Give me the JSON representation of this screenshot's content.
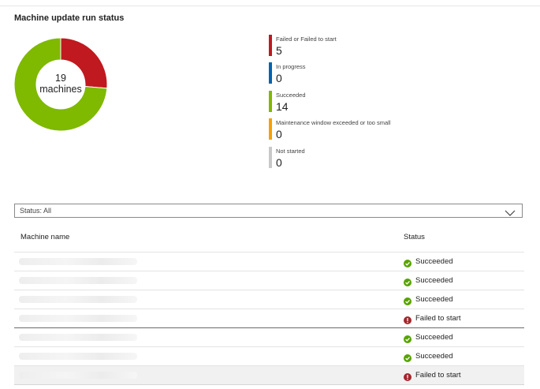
{
  "panel": {
    "title": "Machine update run status"
  },
  "donut": {
    "total_count": "19",
    "total_label": "machines",
    "segments": [
      {
        "name": "Failed or Failed to start",
        "value": 5,
        "color": "#c0191f"
      },
      {
        "name": "Succeeded",
        "value": 14,
        "color": "#7fb900"
      }
    ]
  },
  "legend": {
    "items": [
      {
        "label": "Failed or Failed to start",
        "value": "5",
        "color": "#c0191f"
      },
      {
        "label": "In progress",
        "value": "0",
        "color": "#0063b1"
      },
      {
        "label": "Succeeded",
        "value": "14",
        "color": "#7fb900"
      },
      {
        "label": "Maintenance window exceeded or too small",
        "value": "0",
        "color": "#f7a000"
      },
      {
        "label": "Not started",
        "value": "0",
        "color": "#c8c8c8"
      }
    ]
  },
  "filter": {
    "label": "Status: All",
    "icon": "chevron-down-icon"
  },
  "table": {
    "columns": [
      "Machine name",
      "Status"
    ],
    "rows": [
      {
        "status": "Succeeded",
        "icon": "success-icon",
        "color": "#57a300"
      },
      {
        "status": "Succeeded",
        "icon": "success-icon",
        "color": "#57a300"
      },
      {
        "status": "Succeeded",
        "icon": "success-icon",
        "color": "#57a300"
      },
      {
        "status": "Failed to start",
        "icon": "error-icon",
        "color": "#a4262c"
      },
      {
        "status": "Succeeded",
        "icon": "success-icon",
        "color": "#57a300"
      },
      {
        "status": "Succeeded",
        "icon": "success-icon",
        "color": "#57a300"
      },
      {
        "status": "Failed to start",
        "icon": "error-icon",
        "color": "#a4262c"
      }
    ]
  }
}
